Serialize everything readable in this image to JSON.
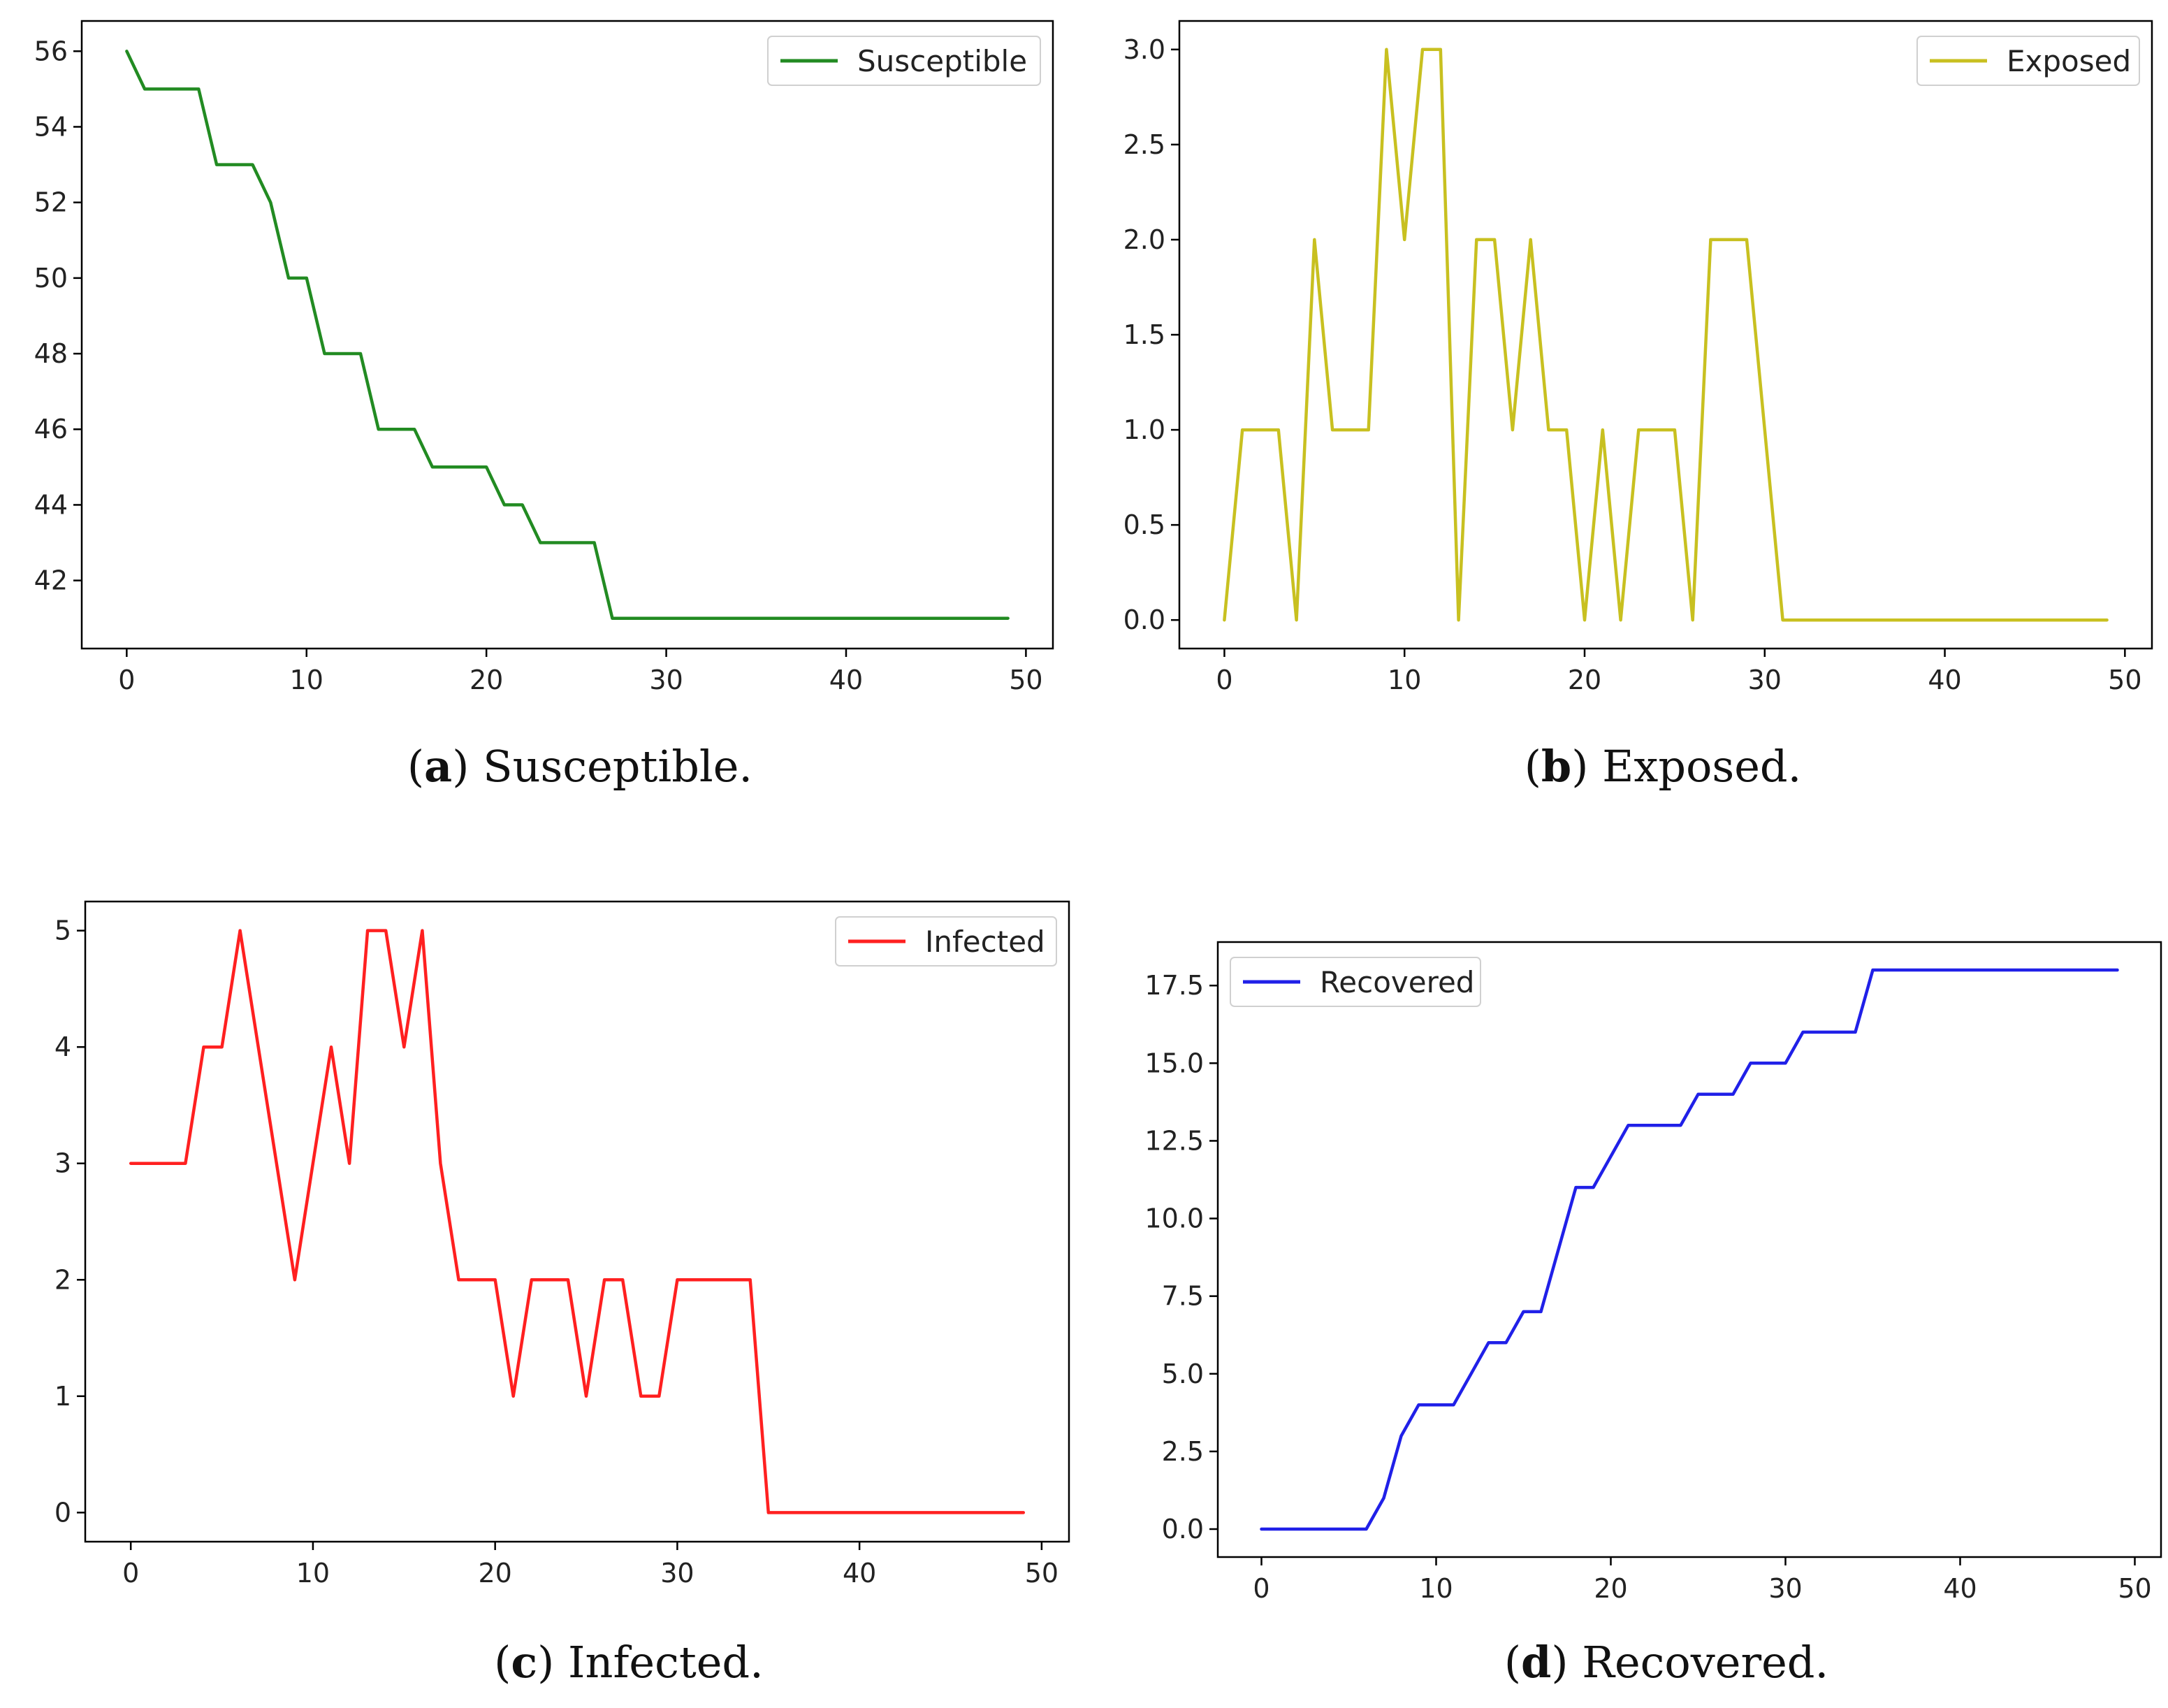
{
  "chart_data": [
    {
      "type": "line",
      "title": "",
      "xlabel": "",
      "ylabel": "",
      "xlim": [
        -2.5,
        51.5
      ],
      "ylim": [
        40.2,
        56.8
      ],
      "x_ticks": [
        0,
        10,
        20,
        30,
        40,
        50
      ],
      "x_tick_labels": [
        "0",
        "10",
        "20",
        "30",
        "40",
        "50"
      ],
      "y_ticks": [
        42,
        44,
        46,
        48,
        50,
        52,
        54,
        56
      ],
      "y_tick_labels": [
        "42",
        "44",
        "46",
        "48",
        "50",
        "52",
        "54",
        "56"
      ],
      "legend_position": "top-right",
      "series": [
        {
          "name": "Susceptible",
          "color": "#228B22",
          "x": [
            0,
            1,
            2,
            3,
            4,
            5,
            6,
            7,
            8,
            9,
            10,
            11,
            12,
            13,
            14,
            15,
            16,
            17,
            18,
            19,
            20,
            21,
            22,
            23,
            24,
            25,
            26,
            27,
            28,
            29,
            30,
            31,
            32,
            33,
            34,
            35,
            36,
            37,
            38,
            39,
            40,
            41,
            42,
            43,
            44,
            45,
            46,
            47,
            48,
            49
          ],
          "values": [
            56,
            55,
            55,
            55,
            55,
            53,
            53,
            53,
            52,
            50,
            50,
            48,
            48,
            48,
            46,
            46,
            46,
            45,
            45,
            45,
            45,
            44,
            44,
            43,
            43,
            43,
            43,
            41,
            41,
            41,
            41,
            41,
            41,
            41,
            41,
            41,
            41,
            41,
            41,
            41,
            41,
            41,
            41,
            41,
            41,
            41,
            41,
            41,
            41,
            41
          ]
        }
      ],
      "caption": {
        "letter": "a",
        "text": "Susceptible."
      }
    },
    {
      "type": "line",
      "title": "",
      "xlabel": "",
      "ylabel": "",
      "xlim": [
        -2.5,
        51.5
      ],
      "ylim": [
        -0.15,
        3.15
      ],
      "x_ticks": [
        0,
        10,
        20,
        30,
        40,
        50
      ],
      "x_tick_labels": [
        "0",
        "10",
        "20",
        "30",
        "40",
        "50"
      ],
      "y_ticks": [
        0,
        0.5,
        1,
        1.5,
        2,
        2.5,
        3
      ],
      "y_tick_labels": [
        "0.0",
        "0.5",
        "1.0",
        "1.5",
        "2.0",
        "2.5",
        "3.0"
      ],
      "legend_position": "top-right",
      "series": [
        {
          "name": "Exposed",
          "color": "#C8C020",
          "x": [
            0,
            1,
            2,
            3,
            4,
            5,
            6,
            7,
            8,
            9,
            10,
            11,
            12,
            13,
            14,
            15,
            16,
            17,
            18,
            19,
            20,
            21,
            22,
            23,
            24,
            25,
            26,
            27,
            28,
            29,
            30,
            31,
            32,
            33,
            34,
            35,
            36,
            37,
            38,
            39,
            40,
            41,
            42,
            43,
            44,
            45,
            46,
            47,
            48,
            49
          ],
          "values": [
            0,
            1,
            1,
            1,
            0,
            2,
            1,
            1,
            1,
            3,
            2,
            3,
            3,
            0,
            2,
            2,
            1,
            2,
            1,
            1,
            0,
            1,
            0,
            1,
            1,
            1,
            0,
            2,
            2,
            2,
            1,
            0,
            0,
            0,
            0,
            0,
            0,
            0,
            0,
            0,
            0,
            0,
            0,
            0,
            0,
            0,
            0,
            0,
            0,
            0
          ]
        }
      ],
      "caption": {
        "letter": "b",
        "text": "Exposed."
      }
    },
    {
      "type": "line",
      "title": "",
      "xlabel": "",
      "ylabel": "",
      "xlim": [
        -2.5,
        51.5
      ],
      "ylim": [
        -0.25,
        5.25
      ],
      "x_ticks": [
        0,
        10,
        20,
        30,
        40,
        50
      ],
      "x_tick_labels": [
        "0",
        "10",
        "20",
        "30",
        "40",
        "50"
      ],
      "y_ticks": [
        0,
        1,
        2,
        3,
        4,
        5
      ],
      "y_tick_labels": [
        "0",
        "1",
        "2",
        "3",
        "4",
        "5"
      ],
      "legend_position": "top-right",
      "series": [
        {
          "name": "Infected",
          "color": "#FF2020",
          "x": [
            0,
            1,
            2,
            3,
            4,
            5,
            6,
            7,
            8,
            9,
            10,
            11,
            12,
            13,
            14,
            15,
            16,
            17,
            18,
            19,
            20,
            21,
            22,
            23,
            24,
            25,
            26,
            27,
            28,
            29,
            30,
            31,
            32,
            33,
            34,
            35,
            36,
            37,
            38,
            39,
            40,
            41,
            42,
            43,
            44,
            45,
            46,
            47,
            48,
            49
          ],
          "values": [
            3,
            3,
            3,
            3,
            4,
            4,
            5,
            4,
            3,
            2,
            3,
            4,
            3,
            5,
            5,
            4,
            5,
            3,
            2,
            2,
            2,
            1,
            2,
            2,
            2,
            1,
            2,
            2,
            1,
            1,
            2,
            2,
            2,
            2,
            2,
            0,
            0,
            0,
            0,
            0,
            0,
            0,
            0,
            0,
            0,
            0,
            0,
            0,
            0,
            0
          ]
        }
      ],
      "caption": {
        "letter": "c",
        "text": "Infected."
      }
    },
    {
      "type": "line",
      "title": "",
      "xlabel": "",
      "ylabel": "",
      "xlim": [
        -2.5,
        51.5
      ],
      "ylim": [
        -0.9,
        18.9
      ],
      "x_ticks": [
        0,
        10,
        20,
        30,
        40,
        50
      ],
      "x_tick_labels": [
        "0",
        "10",
        "20",
        "30",
        "40",
        "50"
      ],
      "y_ticks": [
        0,
        2.5,
        5,
        7.5,
        10,
        12.5,
        15,
        17.5
      ],
      "y_tick_labels": [
        "0.0",
        "2.5",
        "5.0",
        "7.5",
        "10.0",
        "12.5",
        "15.0",
        "17.5"
      ],
      "legend_position": "top-left",
      "series": [
        {
          "name": "Recovered",
          "color": "#2020E8",
          "x": [
            0,
            1,
            2,
            3,
            4,
            5,
            6,
            7,
            8,
            9,
            10,
            11,
            12,
            13,
            14,
            15,
            16,
            17,
            18,
            19,
            20,
            21,
            22,
            23,
            24,
            25,
            26,
            27,
            28,
            29,
            30,
            31,
            32,
            33,
            34,
            35,
            36,
            37,
            38,
            39,
            40,
            41,
            42,
            43,
            44,
            45,
            46,
            47,
            48,
            49
          ],
          "values": [
            0,
            0,
            0,
            0,
            0,
            0,
            0,
            1,
            3,
            4,
            4,
            4,
            5,
            6,
            6,
            7,
            7,
            9,
            11,
            11,
            12,
            13,
            13,
            13,
            13,
            14,
            14,
            14,
            15,
            15,
            15,
            16,
            16,
            16,
            16,
            18,
            18,
            18,
            18,
            18,
            18,
            18,
            18,
            18,
            18,
            18,
            18,
            18,
            18,
            18
          ]
        }
      ],
      "caption": {
        "letter": "d",
        "text": "Recovered."
      }
    }
  ]
}
